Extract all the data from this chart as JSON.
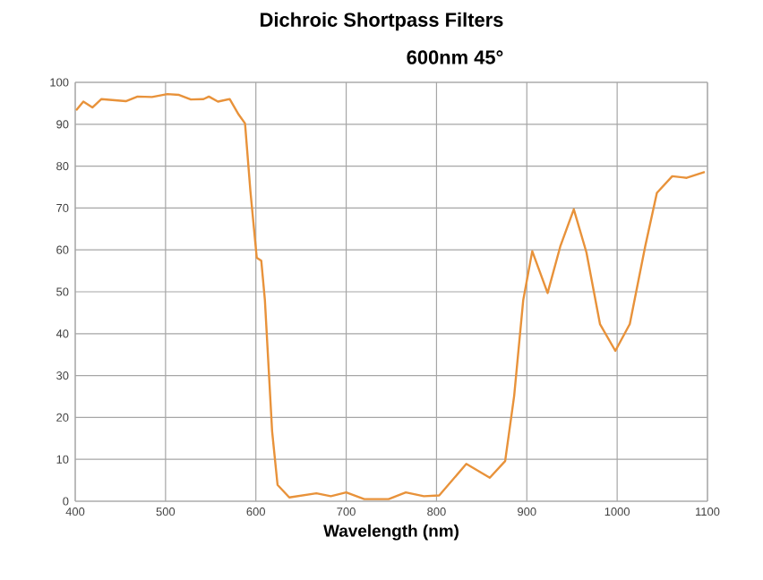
{
  "chart_data": {
    "type": "line",
    "title": "Dichroic Shortpass Filters",
    "subtitle": "600nm 45°",
    "xlabel": "Wavelength (nm)",
    "xlim": [
      400,
      1100
    ],
    "xticks": [
      400,
      500,
      600,
      700,
      800,
      900,
      1000,
      1100
    ],
    "ylim": [
      0,
      100
    ],
    "yticks": [
      0,
      10,
      20,
      30,
      40,
      50,
      60,
      70,
      80,
      90,
      100
    ],
    "grid": true,
    "series": [
      {
        "color": "#e8923a",
        "x": [
          401,
          409,
          419,
          429,
          456,
          469,
          485,
          502,
          515,
          528,
          542,
          548,
          558,
          571,
          581,
          588,
          594,
          601,
          606,
          610,
          618,
          624,
          637,
          667,
          683,
          700,
          720,
          747,
          766,
          786,
          803,
          833,
          859,
          876,
          886,
          896,
          906,
          923,
          937,
          952,
          966,
          981,
          998,
          1014,
          1031,
          1044,
          1061,
          1077,
          1097
        ],
        "values": [
          93.3,
          95.4,
          94.0,
          96.0,
          95.5,
          96.6,
          96.5,
          97.2,
          97.0,
          95.9,
          96.0,
          96.6,
          95.4,
          96.0,
          92.3,
          90.2,
          73.9,
          58.1,
          57.4,
          48.0,
          16.7,
          3.9,
          0.9,
          1.9,
          1.2,
          2.1,
          0.5,
          0.5,
          2.1,
          1.2,
          1.4,
          8.9,
          5.6,
          9.6,
          25.2,
          48.0,
          59.7,
          49.7,
          60.8,
          69.7,
          59.4,
          42.3,
          35.9,
          42.3,
          60.8,
          73.6,
          77.6,
          77.2,
          78.6
        ]
      }
    ]
  }
}
